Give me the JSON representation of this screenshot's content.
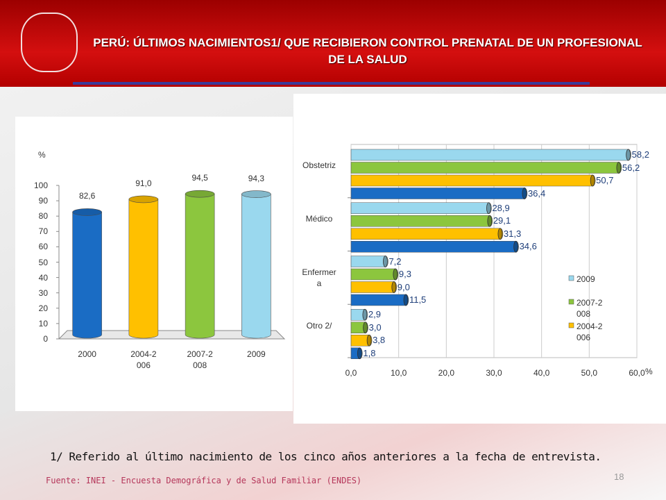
{
  "header": {
    "title": "PERÚ: ÚLTIMOS NACIMIENTOS1/ QUE RECIBIERON CONTROL PRENATAL DE UN PROFESIONAL DE LA SALUD"
  },
  "chart_data": [
    {
      "type": "bar",
      "y_label": "%",
      "categories": [
        "2000",
        "2004-2006",
        "2007-2008",
        "2009"
      ],
      "values": [
        82.6,
        91.0,
        94.5,
        94.3
      ],
      "value_labels": [
        "82,6",
        "91,0",
        "94,5",
        "94,3"
      ],
      "colors": [
        "#1a6cc4",
        "#ffc000",
        "#8cc63e",
        "#9ad8ee"
      ],
      "ylim": [
        0,
        100
      ],
      "yticks": [
        0,
        10,
        20,
        30,
        40,
        50,
        60,
        70,
        80,
        90,
        100
      ]
    },
    {
      "type": "hbar",
      "x_label": "%",
      "categories": [
        "Obstetriz",
        "Médico",
        "Enfermera",
        "Otro 2/"
      ],
      "series": [
        {
          "name": "2009",
          "color": "#9ad8ee",
          "values": [
            58.2,
            28.9,
            7.2,
            2.9
          ],
          "value_labels": [
            "58,2",
            "28,9",
            "7,2",
            "2,9"
          ]
        },
        {
          "name": "2007-2008",
          "color": "#8cc63e",
          "values": [
            56.2,
            29.1,
            9.3,
            3.0
          ],
          "value_labels": [
            "56,2",
            "29,1",
            "9,3",
            "3,0"
          ]
        },
        {
          "name": "2004-2006",
          "color": "#ffc000",
          "values": [
            50.7,
            31.3,
            9.0,
            3.8
          ],
          "value_labels": [
            "50,7",
            "31,3",
            "9,0",
            "3,8"
          ]
        },
        {
          "color": "#1a6cc4",
          "values": [
            36.4,
            34.6,
            11.5,
            1.8
          ],
          "value_labels": [
            "36,4",
            "34,6",
            "11,5",
            "1,8"
          ]
        }
      ],
      "xlim": [
        0,
        60
      ],
      "xticks": [
        {
          "value": 0,
          "label": "0,0"
        },
        {
          "value": 10,
          "label": "10,0"
        },
        {
          "value": 20,
          "label": "20,0"
        },
        {
          "value": 30,
          "label": "30,0"
        },
        {
          "value": 40,
          "label": "40,0"
        },
        {
          "value": 50,
          "label": "50,0"
        },
        {
          "value": 60,
          "label": "60,0"
        }
      ]
    }
  ],
  "footnote": "1/ Referido al último nacimiento de los cinco años anteriores a la fecha de entrevista.",
  "source": "Fuente: INEI - Encuesta Demográfica y de Salud Familiar (ENDES)",
  "page_number": "18"
}
